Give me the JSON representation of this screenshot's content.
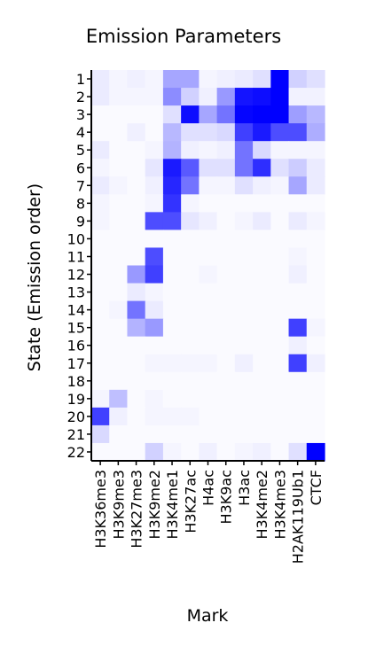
{
  "chart_data": {
    "type": "heatmap",
    "title": "Emission Parameters",
    "xlabel": "Mark",
    "ylabel": "State (Emission order)",
    "x_categories": [
      "H3K36me3",
      "H3K9me3",
      "H3K27me3",
      "H3K9me2",
      "H3K4me1",
      "H3K27ac",
      "H4ac",
      "H3K9ac",
      "H3ac",
      "H3K4me2",
      "H3K4me3",
      "H2AK119Ub1",
      "CTCF"
    ],
    "y_categories": [
      "1",
      "2",
      "3",
      "4",
      "5",
      "6",
      "7",
      "8",
      "9",
      "10",
      "11",
      "12",
      "13",
      "14",
      "15",
      "16",
      "17",
      "18",
      "19",
      "20",
      "21",
      "22"
    ],
    "value_range": [
      0,
      1
    ],
    "colormap": {
      "low": "#ffffff",
      "high": "#0000ff"
    },
    "values": [
      [
        0.08,
        0.04,
        0.06,
        0.04,
        0.35,
        0.35,
        0.04,
        0.06,
        0.08,
        0.12,
        1.0,
        0.18,
        0.12
      ],
      [
        0.08,
        0.04,
        0.04,
        0.04,
        0.45,
        0.18,
        0.06,
        0.4,
        0.92,
        0.95,
        1.0,
        0.05,
        0.05
      ],
      [
        0.02,
        0.02,
        0.02,
        0.02,
        0.12,
        0.95,
        0.35,
        0.55,
        0.98,
        1.0,
        1.0,
        0.38,
        0.28
      ],
      [
        0.02,
        0.02,
        0.06,
        0.02,
        0.28,
        0.12,
        0.12,
        0.15,
        0.75,
        0.9,
        0.7,
        0.7,
        0.32
      ],
      [
        0.08,
        0.02,
        0.02,
        0.04,
        0.3,
        0.06,
        0.04,
        0.06,
        0.55,
        0.15,
        0.04,
        0.04,
        0.04
      ],
      [
        0.04,
        0.02,
        0.02,
        0.1,
        0.9,
        0.65,
        0.12,
        0.12,
        0.55,
        0.82,
        0.12,
        0.2,
        0.08
      ],
      [
        0.08,
        0.04,
        0.02,
        0.06,
        0.85,
        0.55,
        0.04,
        0.04,
        0.12,
        0.06,
        0.04,
        0.35,
        0.08
      ],
      [
        0.04,
        0.02,
        0.02,
        0.04,
        0.8,
        0.04,
        0.02,
        0.02,
        0.02,
        0.02,
        0.02,
        0.02,
        0.02
      ],
      [
        0.04,
        0.02,
        0.02,
        0.7,
        0.7,
        0.1,
        0.06,
        0.02,
        0.04,
        0.08,
        0.02,
        0.08,
        0.04
      ],
      [
        0.02,
        0.02,
        0.02,
        0.02,
        0.02,
        0.02,
        0.02,
        0.02,
        0.02,
        0.02,
        0.02,
        0.02,
        0.02
      ],
      [
        0.02,
        0.02,
        0.02,
        0.7,
        0.02,
        0.02,
        0.02,
        0.02,
        0.02,
        0.02,
        0.02,
        0.04,
        0.02
      ],
      [
        0.02,
        0.02,
        0.4,
        0.75,
        0.02,
        0.02,
        0.04,
        0.02,
        0.02,
        0.02,
        0.02,
        0.06,
        0.02
      ],
      [
        0.02,
        0.02,
        0.08,
        0.04,
        0.02,
        0.02,
        0.02,
        0.02,
        0.02,
        0.02,
        0.02,
        0.02,
        0.02
      ],
      [
        0.02,
        0.04,
        0.55,
        0.08,
        0.02,
        0.02,
        0.02,
        0.02,
        0.02,
        0.02,
        0.02,
        0.02,
        0.02
      ],
      [
        0.02,
        0.02,
        0.3,
        0.4,
        0.02,
        0.02,
        0.02,
        0.02,
        0.02,
        0.02,
        0.02,
        0.75,
        0.04
      ],
      [
        0.02,
        0.02,
        0.02,
        0.02,
        0.02,
        0.02,
        0.02,
        0.02,
        0.02,
        0.02,
        0.02,
        0.06,
        0.02
      ],
      [
        0.02,
        0.02,
        0.02,
        0.04,
        0.04,
        0.04,
        0.04,
        0.02,
        0.06,
        0.02,
        0.02,
        0.75,
        0.06
      ],
      [
        0.02,
        0.02,
        0.02,
        0.02,
        0.02,
        0.02,
        0.02,
        0.02,
        0.02,
        0.02,
        0.02,
        0.02,
        0.02
      ],
      [
        0.04,
        0.25,
        0.02,
        0.04,
        0.02,
        0.02,
        0.02,
        0.02,
        0.02,
        0.02,
        0.02,
        0.02,
        0.02
      ],
      [
        0.75,
        0.06,
        0.02,
        0.04,
        0.04,
        0.04,
        0.02,
        0.02,
        0.02,
        0.02,
        0.02,
        0.02,
        0.02
      ],
      [
        0.15,
        0.02,
        0.02,
        0.02,
        0.02,
        0.02,
        0.02,
        0.02,
        0.02,
        0.02,
        0.02,
        0.02,
        0.02
      ],
      [
        0.02,
        0.02,
        0.02,
        0.18,
        0.04,
        0.02,
        0.06,
        0.02,
        0.04,
        0.06,
        0.02,
        0.12,
        1.0
      ]
    ]
  }
}
